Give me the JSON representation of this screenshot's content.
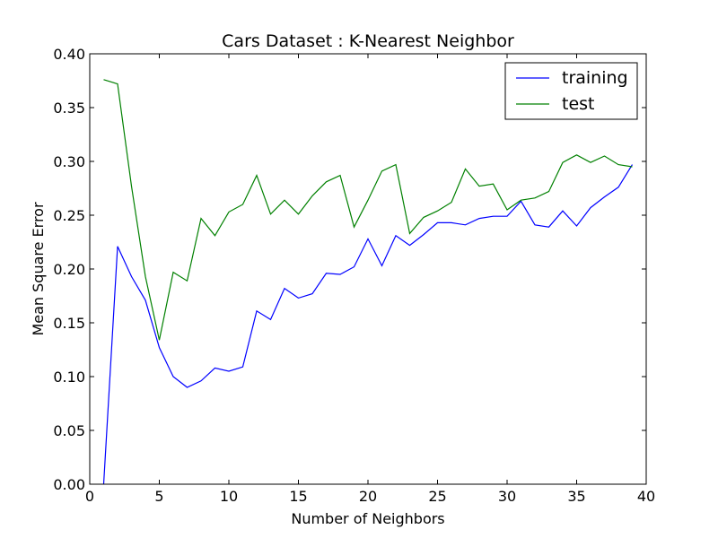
{
  "chart_data": {
    "type": "line",
    "title": "Cars Dataset : K-Nearest Neighbor",
    "xlabel": "Number of Neighbors",
    "ylabel": "Mean Square Error",
    "xlim": [
      0,
      40
    ],
    "ylim": [
      0.0,
      0.4
    ],
    "xticks": [
      0,
      5,
      10,
      15,
      20,
      25,
      30,
      35,
      40
    ],
    "xtick_labels": [
      "0",
      "5",
      "10",
      "15",
      "20",
      "25",
      "30",
      "35",
      "40"
    ],
    "yticks": [
      0.0,
      0.05,
      0.1,
      0.15,
      0.2,
      0.25,
      0.3,
      0.35,
      0.4
    ],
    "ytick_labels": [
      "0.00",
      "0.05",
      "0.10",
      "0.15",
      "0.20",
      "0.25",
      "0.30",
      "0.35",
      "0.40"
    ],
    "grid": false,
    "legend_position": "top-right",
    "x": [
      1,
      2,
      3,
      4,
      5,
      6,
      7,
      8,
      9,
      10,
      11,
      12,
      13,
      14,
      15,
      16,
      17,
      18,
      19,
      20,
      21,
      22,
      23,
      24,
      25,
      26,
      27,
      28,
      29,
      30,
      31,
      32,
      33,
      34,
      35,
      36,
      37,
      38,
      39
    ],
    "series": [
      {
        "name": "training",
        "color": "#0000ff",
        "values": [
          0.0,
          0.221,
          0.193,
          0.171,
          0.127,
          0.1,
          0.09,
          0.096,
          0.108,
          0.105,
          0.109,
          0.161,
          0.153,
          0.182,
          0.173,
          0.177,
          0.196,
          0.195,
          0.202,
          0.228,
          0.203,
          0.231,
          0.222,
          0.232,
          0.243,
          0.243,
          0.241,
          0.247,
          0.249,
          0.249,
          0.263,
          0.241,
          0.239,
          0.254,
          0.24,
          0.257,
          0.267,
          0.276,
          0.297
        ]
      },
      {
        "name": "test",
        "color": "#008000",
        "values": [
          0.376,
          0.372,
          0.277,
          0.193,
          0.134,
          0.197,
          0.189,
          0.247,
          0.231,
          0.253,
          0.26,
          0.287,
          0.251,
          0.264,
          0.251,
          0.268,
          0.281,
          0.287,
          0.239,
          0.264,
          0.291,
          0.297,
          0.233,
          0.248,
          0.254,
          0.262,
          0.293,
          0.277,
          0.279,
          0.255,
          0.264,
          0.266,
          0.272,
          0.299,
          0.306,
          0.299,
          0.305,
          0.297,
          0.295
        ]
      }
    ]
  }
}
